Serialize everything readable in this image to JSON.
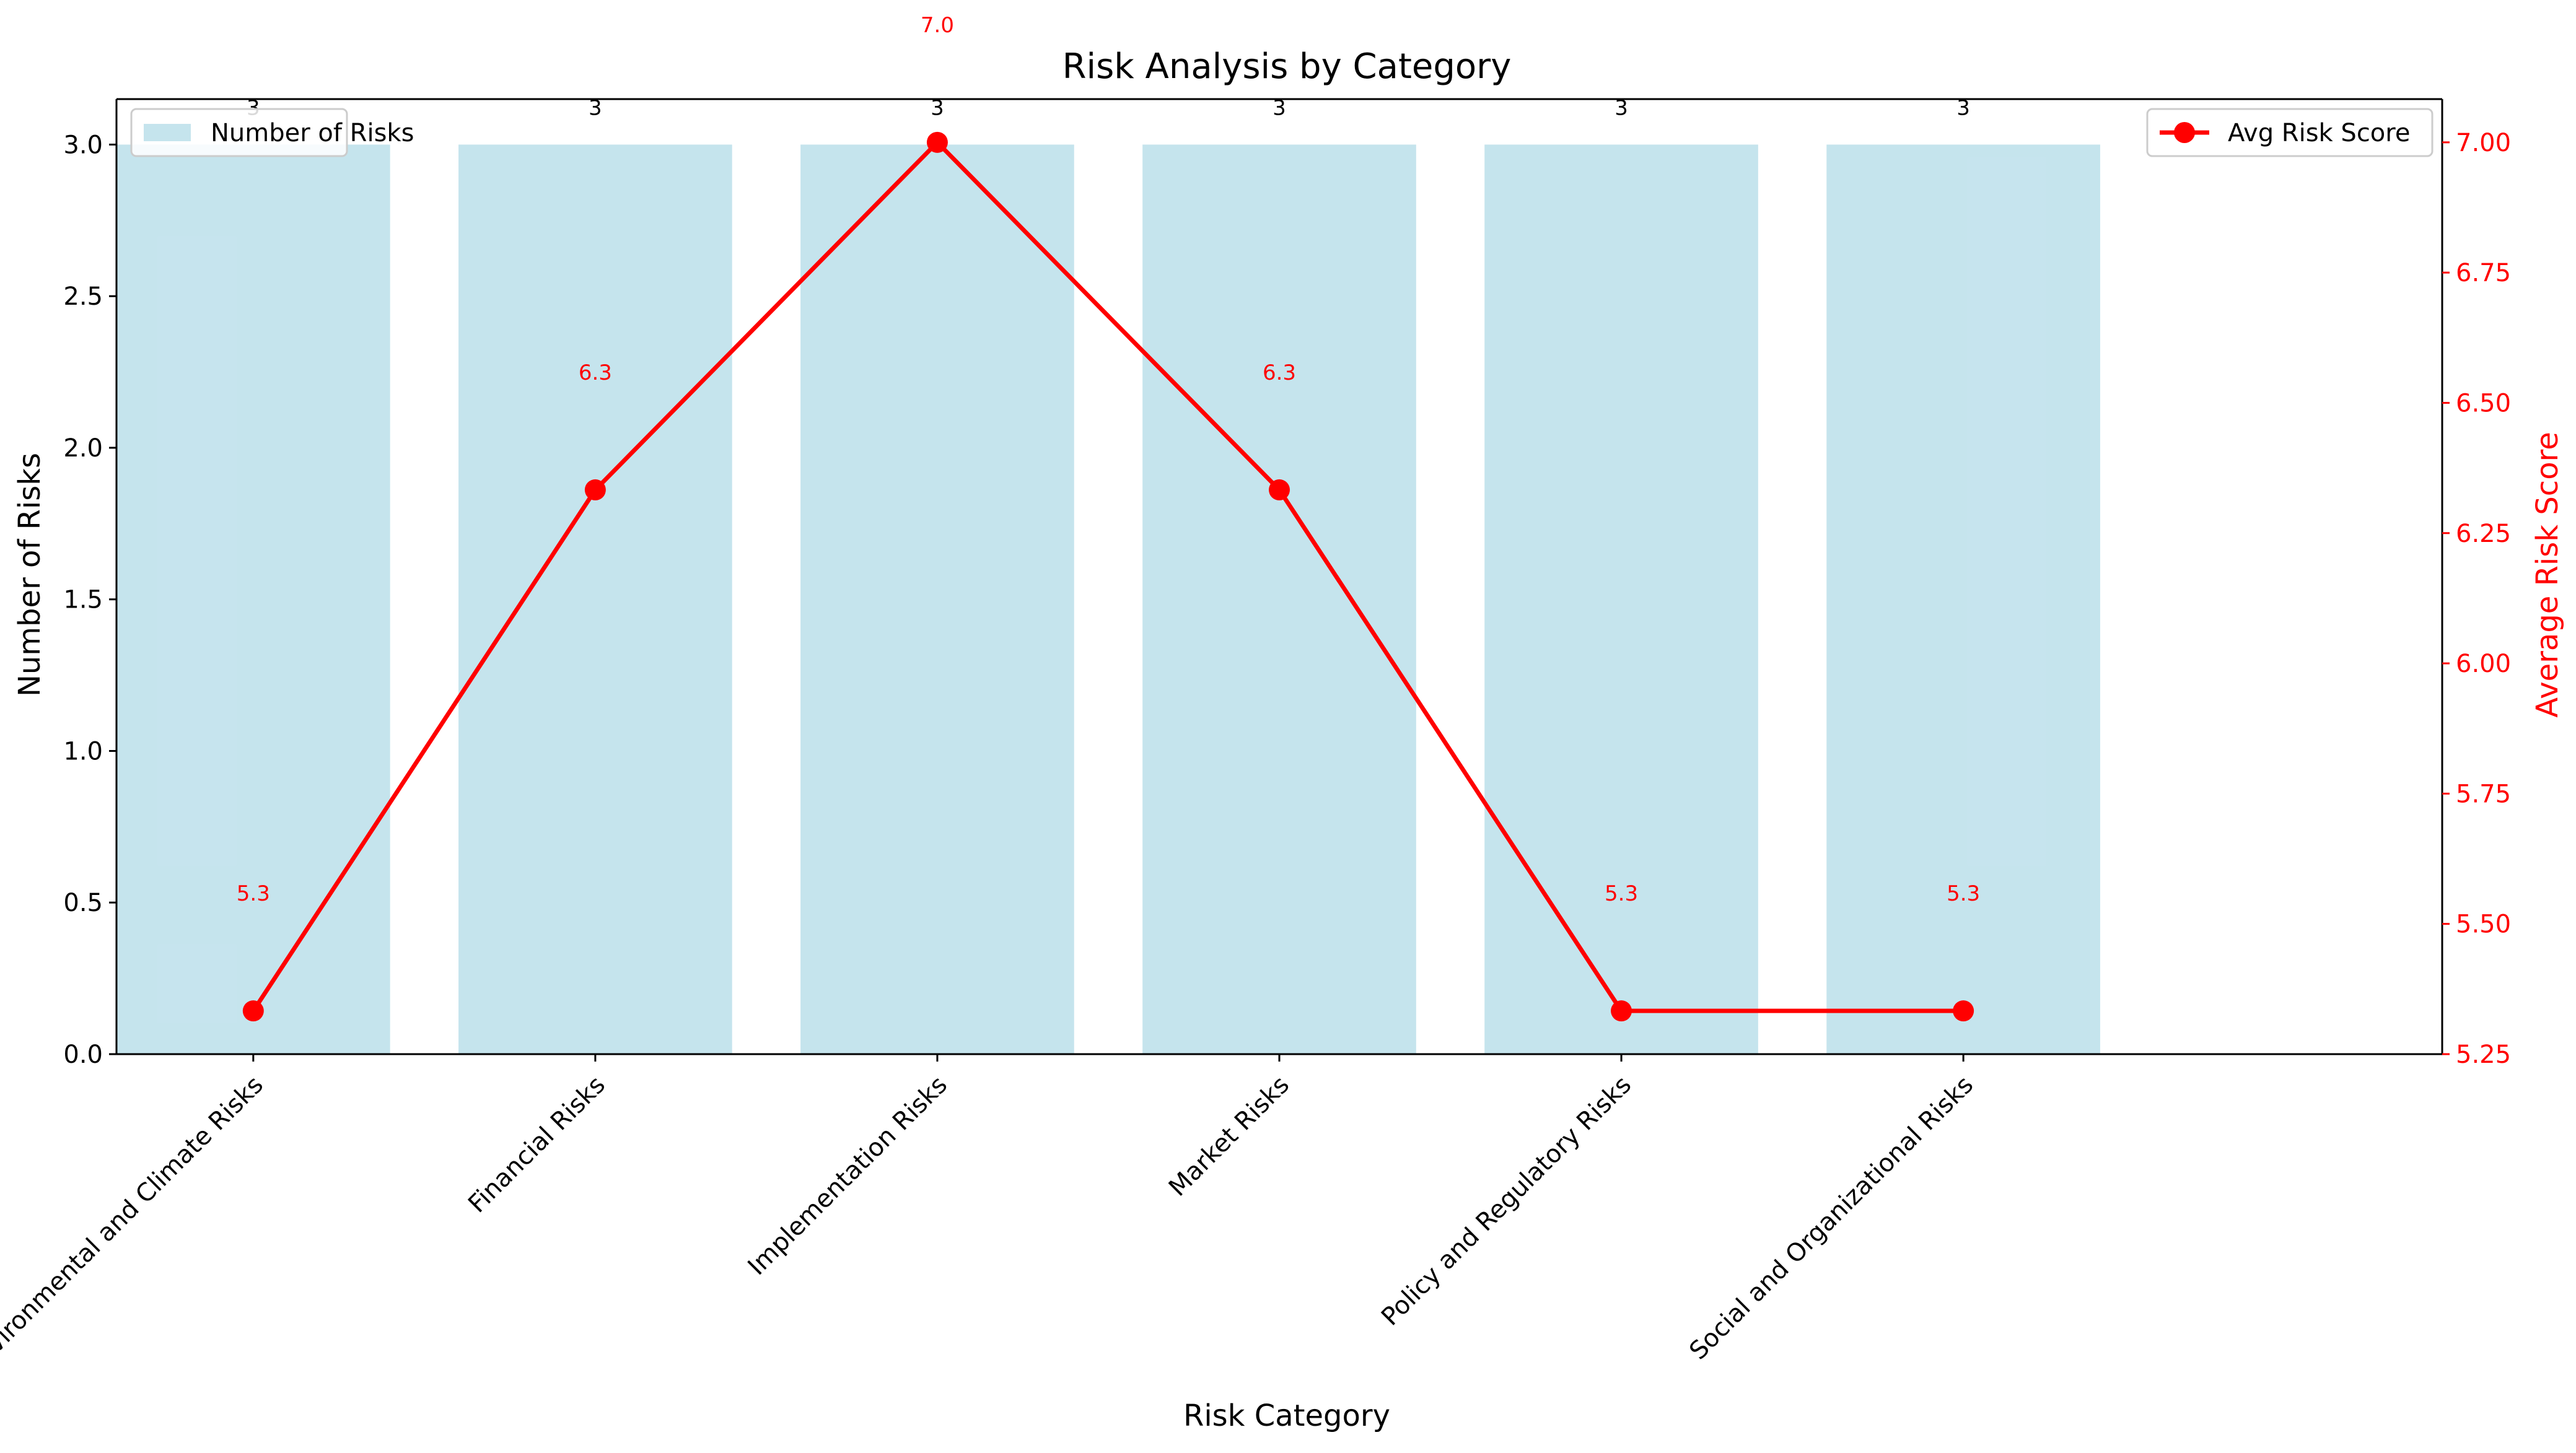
{
  "chart_data": {
    "type": "bar+line",
    "title": "Risk Analysis by Category",
    "xlabel": "Risk Category",
    "ylabel_left": "Number of Risks",
    "ylabel_right": "Average Risk Score",
    "categories": [
      "Environmental and Climate Risks",
      "Financial Risks",
      "Implementation Risks",
      "Market Risks",
      "Policy and Regulatory Risks",
      "Social and Organizational Risks"
    ],
    "series": [
      {
        "name": "Number of Risks",
        "type": "bar",
        "axis": "left",
        "values": [
          3,
          3,
          3,
          3,
          3,
          3
        ],
        "labels": [
          "3",
          "3",
          "3",
          "3",
          "3",
          "3"
        ],
        "color": "#add8e6"
      },
      {
        "name": "Avg Risk Score",
        "type": "line",
        "axis": "right",
        "values": [
          5.333,
          6.333,
          7.0,
          6.333,
          5.333,
          5.333
        ],
        "labels": [
          "5.3",
          "6.3",
          "7.0",
          "6.3",
          "5.3",
          "5.3"
        ],
        "color": "#ff0000"
      }
    ],
    "ylim_left": [
      0,
      3.15
    ],
    "ylim_right": [
      5.25,
      7.083
    ],
    "yticks_left": [
      "0.0",
      "0.5",
      "1.0",
      "1.5",
      "2.0",
      "2.5",
      "3.0"
    ],
    "yticks_right": [
      "5.25",
      "5.50",
      "5.75",
      "6.00",
      "6.25",
      "6.50",
      "6.75",
      "7.00"
    ],
    "legend_left": {
      "placement": "top-left",
      "label": "Number of Risks"
    },
    "legend_right": {
      "placement": "top-right",
      "label": "Avg Risk Score"
    },
    "grid": false
  }
}
